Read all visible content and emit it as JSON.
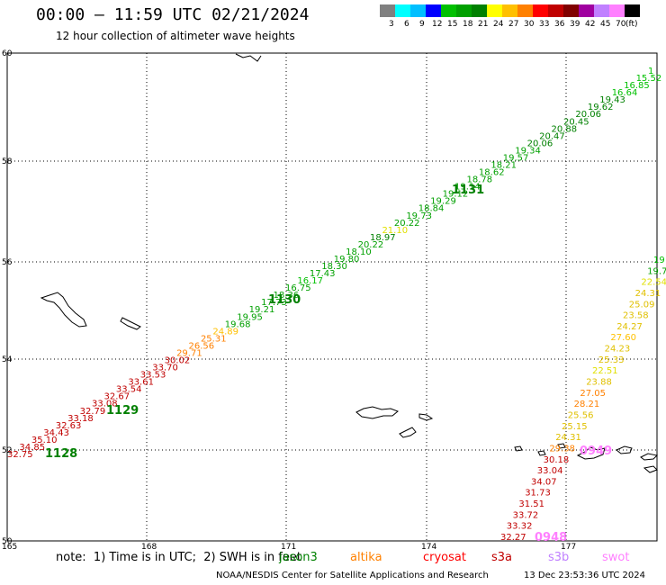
{
  "header": {
    "title": "00:00 – 11:59 UTC 02/21/2024",
    "subtitle": "12 hour collection of altimeter wave heights"
  },
  "colorbar": {
    "colors": [
      "#808080",
      "#00ffff",
      "#00bfff",
      "#0000ff",
      "#00c000",
      "#00a000",
      "#008000",
      "#ffff00",
      "#ffc000",
      "#ff8000",
      "#ff0000",
      "#c00000",
      "#800000",
      "#a000a0",
      "#c080ff",
      "#ff80ff",
      "#000000"
    ],
    "labels": [
      "3",
      "6",
      "9",
      "12",
      "15",
      "18",
      "21",
      "24",
      "27",
      "30",
      "33",
      "36",
      "39",
      "42",
      "45",
      "70",
      "(ft)"
    ]
  },
  "axes": {
    "lat_ticks": [
      "60",
      "58",
      "56",
      "54",
      "52",
      "50"
    ],
    "lon_ticks": [
      "165",
      "168",
      "171",
      "174",
      "177"
    ]
  },
  "footer": {
    "note": "note:  1) Time is in UTC;  2) SWH is in feet",
    "satellites": [
      {
        "name": "jason3",
        "color": "#008000"
      },
      {
        "name": "altika",
        "color": "#ff8000"
      },
      {
        "name": "cryosat",
        "color": "#ff0000"
      },
      {
        "name": "s3a",
        "color": "#c00000"
      },
      {
        "name": "s3b",
        "color": "#c080ff"
      },
      {
        "name": "swot",
        "color": "#ff80ff"
      }
    ],
    "credit": "NOAA/NESDIS Center for Satellite Applications and Research",
    "timestamp": "13 Dec 23:53:36 UTC 2024"
  },
  "track1": {
    "values": [
      "32.75",
      "34.85",
      "35.10",
      "34.43",
      "32.63",
      "33.18",
      "32.79",
      "33.08",
      "32.67",
      "33.54",
      "33.61",
      "33.53",
      "33.70",
      "30.02",
      "29.71",
      "26.56",
      "25.31",
      "24.89",
      "19.68",
      "19.95",
      "19.21",
      "17.73",
      "18.36",
      "16.75",
      "16.17",
      "17.43",
      "18.30",
      "19.80",
      "18.10",
      "20.22",
      "18.97",
      "21.10",
      "20.22",
      "19.73",
      "18.84",
      "19.29",
      "19.12",
      "19.14",
      "18.78",
      "18.62",
      "18.21",
      "19.57",
      "19.34",
      "20.06",
      "20.47",
      "20.88",
      "20.45",
      "20.06",
      "19.62",
      "19.43",
      "16.64",
      "16.85",
      "15.52",
      "1"
    ],
    "colors": [
      "#c00000",
      "#c00000",
      "#c00000",
      "#c00000",
      "#c00000",
      "#c00000",
      "#c00000",
      "#c00000",
      "#c00000",
      "#c00000",
      "#c00000",
      "#c00000",
      "#c00000",
      "#c00000",
      "#ff8000",
      "#ff8000",
      "#ff8000",
      "#ffc000",
      "#00a000",
      "#00a000",
      "#00a000",
      "#00a000",
      "#00a000",
      "#00a000",
      "#00c000",
      "#00a000",
      "#00a000",
      "#00a000",
      "#00a000",
      "#00a000",
      "#008000",
      "#e0e000",
      "#00a000",
      "#00a000",
      "#00a000",
      "#00a000",
      "#00a000",
      "#00a000",
      "#00a000",
      "#00a000",
      "#00a000",
      "#00a000",
      "#00a000",
      "#008000",
      "#008000",
      "#008000",
      "#008000",
      "#008000",
      "#008000",
      "#008000",
      "#00c000",
      "#00c000",
      "#00c000",
      "#00c000"
    ],
    "times": [
      "1128",
      "1129",
      "1130",
      "1131"
    ]
  },
  "track2": {
    "values": [
      "19",
      "19.7",
      "22.54",
      "24.31",
      "25.09",
      "23.58",
      "24.27",
      "27.60",
      "24.23",
      "25.33",
      "22.51",
      "23.88",
      "27.05",
      "28.21",
      "25.56",
      "25.15",
      "24.31",
      "29.38",
      "30.18",
      "33.04",
      "34.07",
      "31.73",
      "31.51",
      "33.72",
      "33.32",
      "32.27"
    ],
    "colors": [
      "#00c000",
      "#00a000",
      "#e0e000",
      "#e0c000",
      "#e0c000",
      "#e0c000",
      "#e0c000",
      "#ffc000",
      "#e0c000",
      "#e0c000",
      "#e0e000",
      "#e0c000",
      "#ff8000",
      "#ff8000",
      "#e0c000",
      "#e0c000",
      "#e0c000",
      "#ff8000",
      "#c00000",
      "#c00000",
      "#c00000",
      "#c00000",
      "#c00000",
      "#c00000",
      "#c00000",
      "#c00000"
    ],
    "times": [
      "0948",
      "0949"
    ]
  }
}
